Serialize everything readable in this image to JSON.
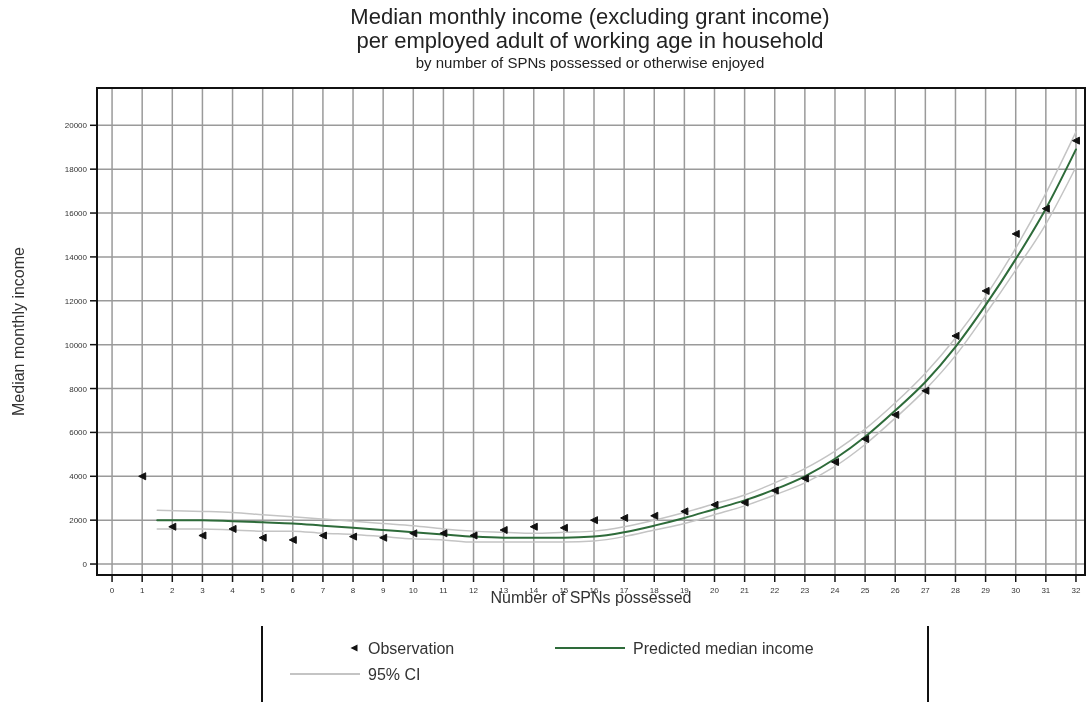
{
  "chart_data": {
    "type": "scatter",
    "title": "Median monthly income (excluding grant income)\nper employed adult of working age in household",
    "subtitle": "by number of SPNs possessed or otherwise enjoyed",
    "xlabel": "Number of SPNs possessed",
    "ylabel": "Median monthly income",
    "x": [
      1,
      2,
      3,
      4,
      5,
      6,
      7,
      8,
      9,
      10,
      11,
      12,
      13,
      14,
      15,
      16,
      17,
      18,
      19,
      20,
      21,
      22,
      23,
      24,
      25,
      26,
      27,
      28,
      29,
      30,
      31,
      32
    ],
    "series": [
      {
        "name": "Observation",
        "marker": "triangle",
        "color": "#111111",
        "values": [
          4000,
          1700,
          1300,
          1600,
          1200,
          1100,
          1300,
          1250,
          1200,
          1400,
          1400,
          1300,
          1550,
          1700,
          1650,
          2000,
          2100,
          2200,
          2400,
          2700,
          2800,
          3350,
          3900,
          4650,
          5700,
          6800,
          7900,
          10400,
          12450,
          15050,
          16200,
          19300
        ]
      },
      {
        "name": "Predicted median income",
        "type": "line",
        "color": "#2e6b3a",
        "x": [
          1.5,
          3,
          4,
          5,
          6,
          7,
          8,
          9,
          10,
          11,
          12,
          13,
          14,
          15,
          16,
          17,
          18,
          19,
          20,
          21,
          22,
          23,
          24,
          25,
          26,
          27,
          28,
          29,
          30,
          31,
          32
        ],
        "values": [
          2000,
          2000,
          1950,
          1900,
          1850,
          1750,
          1650,
          1550,
          1450,
          1350,
          1250,
          1200,
          1200,
          1200,
          1250,
          1450,
          1750,
          2100,
          2500,
          2900,
          3400,
          4000,
          4800,
          5800,
          7000,
          8300,
          9900,
          11800,
          13900,
          16200,
          18900
        ]
      },
      {
        "name": "95% CI",
        "type": "line",
        "color": "#c4c4c4",
        "x": [
          1.5,
          3,
          4,
          5,
          6,
          7,
          8,
          9,
          10,
          11,
          12,
          13,
          14,
          15,
          16,
          17,
          18,
          19,
          20,
          21,
          22,
          23,
          24,
          25,
          26,
          27,
          28,
          29,
          30,
          31,
          32
        ],
        "values": [
          2450,
          2400,
          2350,
          2250,
          2150,
          2050,
          1950,
          1850,
          1750,
          1600,
          1500,
          1450,
          1400,
          1450,
          1500,
          1700,
          2000,
          2350,
          2750,
          3150,
          3700,
          4350,
          5150,
          6150,
          7350,
          8700,
          10300,
          12200,
          14400,
          16900,
          19700
        ]
      },
      {
        "type": "line",
        "color": "#c4c4c4",
        "x": [
          1.5,
          3,
          4,
          5,
          6,
          7,
          8,
          9,
          10,
          11,
          12,
          13,
          14,
          15,
          16,
          17,
          18,
          19,
          20,
          21,
          22,
          23,
          24,
          25,
          26,
          27,
          28,
          29,
          30,
          31,
          32
        ],
        "values": [
          1600,
          1600,
          1550,
          1500,
          1500,
          1400,
          1350,
          1250,
          1150,
          1100,
          1000,
          1000,
          1000,
          1000,
          1050,
          1250,
          1550,
          1850,
          2250,
          2650,
          3150,
          3700,
          4450,
          5450,
          6650,
          7950,
          9500,
          11400,
          13400,
          15500,
          18100
        ]
      }
    ],
    "xlim": [
      -0.5,
      32.3
    ],
    "xticks": [
      0,
      1,
      2,
      3,
      4,
      5,
      6,
      7,
      8,
      9,
      10,
      11,
      12,
      13,
      14,
      15,
      16,
      17,
      18,
      19,
      20,
      21,
      22,
      23,
      24,
      25,
      26,
      27,
      28,
      29,
      30,
      31,
      32
    ],
    "ylim": [
      -500,
      21700
    ],
    "yticks": [
      0,
      2000,
      4000,
      6000,
      8000,
      10000,
      12000,
      14000,
      16000,
      18000,
      20000
    ],
    "grid": true,
    "legend": "bottom"
  }
}
